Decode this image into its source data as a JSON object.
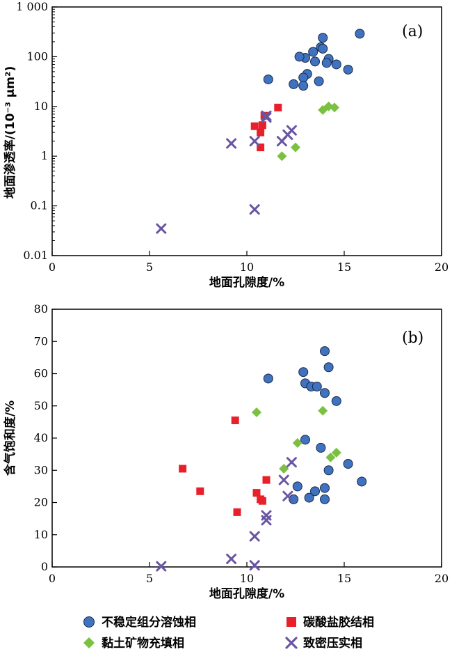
{
  "colors": {
    "dissolution": "#3f73c0",
    "carbonate": "#e8202a",
    "clay": "#7ac142",
    "compaction": "#6a55a3"
  },
  "legend": {
    "dissolution": "不稳定组分溶蚀相",
    "carbonate": "碳酸盐胶结相",
    "clay": "黏土矿物充填相",
    "compaction": "致密压实相"
  },
  "chart_data": [
    {
      "type": "scatter",
      "panel_label": "(a)",
      "xlabel": "地面孔隙度/%",
      "ylabel": "地面渗透率/(10⁻³ μm²)",
      "xlim": [
        0,
        20
      ],
      "ylim": [
        0.01,
        1000
      ],
      "yscale": "log",
      "x_ticks": [
        "0",
        "5",
        "10",
        "15",
        "20"
      ],
      "y_ticks": [
        "0.01",
        "0.1",
        "1",
        "10",
        "100",
        "1 000"
      ],
      "series": [
        {
          "key": "dissolution",
          "marker": "circle",
          "points": [
            [
              15.8,
              290
            ],
            [
              13.9,
              240
            ],
            [
              13.8,
              155
            ],
            [
              13.9,
              145
            ],
            [
              13.4,
              125
            ],
            [
              13.0,
              95
            ],
            [
              12.7,
              100
            ],
            [
              14.2,
              90
            ],
            [
              14.1,
              75
            ],
            [
              13.5,
              80
            ],
            [
              14.6,
              70
            ],
            [
              15.2,
              55
            ],
            [
              13.1,
              45
            ],
            [
              12.9,
              38
            ],
            [
              11.1,
              35
            ],
            [
              13.7,
              32
            ],
            [
              12.4,
              28
            ],
            [
              12.9,
              26
            ]
          ]
        },
        {
          "key": "carbonate",
          "marker": "square",
          "points": [
            [
              11.6,
              9.5
            ],
            [
              10.9,
              6.5
            ],
            [
              10.8,
              4.2
            ],
            [
              10.4,
              4.0
            ],
            [
              10.7,
              3.0
            ],
            [
              10.7,
              1.5
            ]
          ]
        },
        {
          "key": "clay",
          "marker": "diamond",
          "points": [
            [
              14.2,
              10.0
            ],
            [
              14.5,
              9.5
            ],
            [
              13.9,
              8.5
            ],
            [
              12.5,
              1.5
            ],
            [
              11.8,
              1.0
            ]
          ]
        },
        {
          "key": "compaction",
          "marker": "x",
          "points": [
            [
              11.0,
              6.5
            ],
            [
              11.0,
              6.0
            ],
            [
              12.3,
              3.3
            ],
            [
              12.1,
              2.7
            ],
            [
              11.8,
              2.0
            ],
            [
              10.4,
              2.0
            ],
            [
              9.2,
              1.8
            ],
            [
              10.4,
              0.085
            ],
            [
              5.6,
              0.035
            ]
          ]
        }
      ]
    },
    {
      "type": "scatter",
      "panel_label": "(b)",
      "xlabel": "地面孔隙度/%",
      "ylabel": "含气饱和度/%",
      "xlim": [
        0,
        20
      ],
      "ylim": [
        0,
        80
      ],
      "x_ticks": [
        "0",
        "5",
        "10",
        "15",
        "20"
      ],
      "y_ticks": [
        "0",
        "10",
        "20",
        "30",
        "40",
        "50",
        "60",
        "70",
        "80"
      ],
      "series": [
        {
          "key": "dissolution",
          "marker": "circle",
          "points": [
            [
              14.0,
              67
            ],
            [
              14.2,
              62
            ],
            [
              12.9,
              60.5
            ],
            [
              11.1,
              58.5
            ],
            [
              13.0,
              57
            ],
            [
              13.3,
              56
            ],
            [
              13.6,
              56
            ],
            [
              14.0,
              54
            ],
            [
              14.6,
              51.5
            ],
            [
              13.0,
              39.5
            ],
            [
              13.8,
              37
            ],
            [
              15.2,
              32
            ],
            [
              14.2,
              30
            ],
            [
              15.9,
              26.5
            ],
            [
              12.6,
              25
            ],
            [
              14.0,
              24.5
            ],
            [
              13.5,
              23.5
            ],
            [
              13.2,
              21.5
            ],
            [
              14.0,
              21
            ],
            [
              12.4,
              21
            ]
          ]
        },
        {
          "key": "carbonate",
          "marker": "square",
          "points": [
            [
              9.4,
              45.5
            ],
            [
              6.7,
              30.5
            ],
            [
              11.0,
              27
            ],
            [
              7.6,
              23.5
            ],
            [
              10.5,
              23
            ],
            [
              10.7,
              21
            ],
            [
              10.8,
              20.5
            ],
            [
              9.5,
              17
            ]
          ]
        },
        {
          "key": "clay",
          "marker": "diamond",
          "points": [
            [
              10.5,
              48
            ],
            [
              13.9,
              48.5
            ],
            [
              12.6,
              38.5
            ],
            [
              14.6,
              35.5
            ],
            [
              14.3,
              34
            ],
            [
              11.9,
              30.5
            ]
          ]
        },
        {
          "key": "compaction",
          "marker": "x",
          "points": [
            [
              12.3,
              32.5
            ],
            [
              11.9,
              27
            ],
            [
              12.1,
              22
            ],
            [
              11.0,
              16
            ],
            [
              11.0,
              14.5
            ],
            [
              10.4,
              9.5
            ],
            [
              9.2,
              2.5
            ],
            [
              10.4,
              0.5
            ],
            [
              5.6,
              0.2
            ]
          ]
        }
      ]
    }
  ]
}
